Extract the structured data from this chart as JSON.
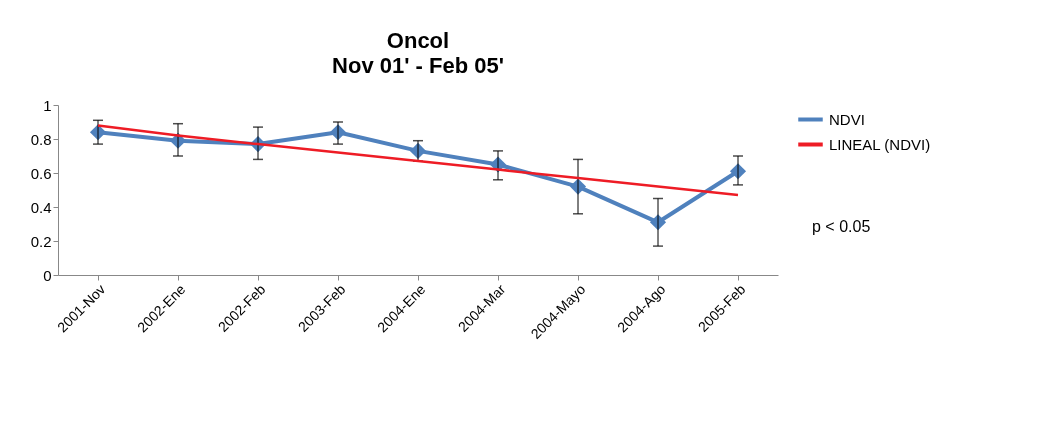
{
  "chart_data": {
    "type": "line",
    "title": "Oncol",
    "subtitle": "Nov 01' - Feb 05'",
    "categories": [
      "2001-Nov",
      "2002-Ene",
      "2002-Feb",
      "2003-Feb",
      "2004-Ene",
      "2004-Mar",
      "2004-Mayo",
      "2004-Ago",
      "2005-Feb"
    ],
    "series": [
      {
        "name": "NDVI",
        "color": "#4f81bd",
        "marker": "diamond",
        "values": [
          0.84,
          0.79,
          0.77,
          0.84,
          0.73,
          0.65,
          0.52,
          0.31,
          0.61
        ],
        "errors": [
          [
            0.77,
            0.91
          ],
          [
            0.7,
            0.89
          ],
          [
            0.68,
            0.87
          ],
          [
            0.77,
            0.9
          ],
          [
            0.67,
            0.79
          ],
          [
            0.56,
            0.73
          ],
          [
            0.36,
            0.68
          ],
          [
            0.17,
            0.45
          ],
          [
            0.53,
            0.7
          ]
        ]
      },
      {
        "name": "LINEAL (NDVI)",
        "color": "#ee1c25",
        "type": "line",
        "marker": "none",
        "values": [
          0.88,
          0.82,
          0.77,
          0.72,
          0.67,
          0.62,
          0.57,
          0.52,
          0.47
        ]
      }
    ],
    "ylim": [
      0,
      1
    ],
    "yticks": [
      0,
      0.2,
      0.4,
      0.6,
      0.8,
      1
    ],
    "grid": false,
    "legend": "right",
    "annotations": [
      "p < 0.05"
    ]
  }
}
